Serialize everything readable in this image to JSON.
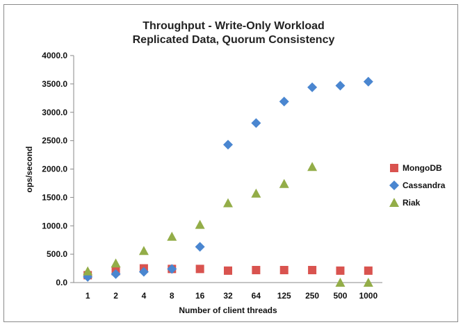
{
  "chart_data": {
    "type": "scatter",
    "title_lines": [
      "Throughput - Write-Only Workload",
      "Replicated Data, Quorum Consistency"
    ],
    "xlabel": "Number of client threads",
    "ylabel": "ops/second",
    "categories": [
      "1",
      "2",
      "4",
      "8",
      "16",
      "32",
      "64",
      "125",
      "250",
      "500",
      "1000"
    ],
    "ylim": [
      0,
      4000
    ],
    "yticks": [
      "0.0",
      "500.0",
      "1000.0",
      "1500.0",
      "2000.0",
      "2500.0",
      "3000.0",
      "3500.0",
      "4000.0"
    ],
    "grid": false,
    "legend_position": "right",
    "series": [
      {
        "name": "MongoDB",
        "marker": "square",
        "color": "#d9534f",
        "values": [
          130,
          200,
          250,
          240,
          240,
          210,
          220,
          220,
          220,
          210,
          210
        ]
      },
      {
        "name": "Cassandra",
        "marker": "diamond",
        "color": "#4a86d0",
        "values": [
          100,
          150,
          190,
          240,
          630,
          2430,
          2810,
          3190,
          3440,
          3470,
          3540
        ]
      },
      {
        "name": "Riak",
        "marker": "triangle",
        "color": "#93ad48",
        "values": [
          200,
          340,
          560,
          810,
          1020,
          1400,
          1570,
          1740,
          2040,
          0,
          0
        ]
      }
    ]
  }
}
